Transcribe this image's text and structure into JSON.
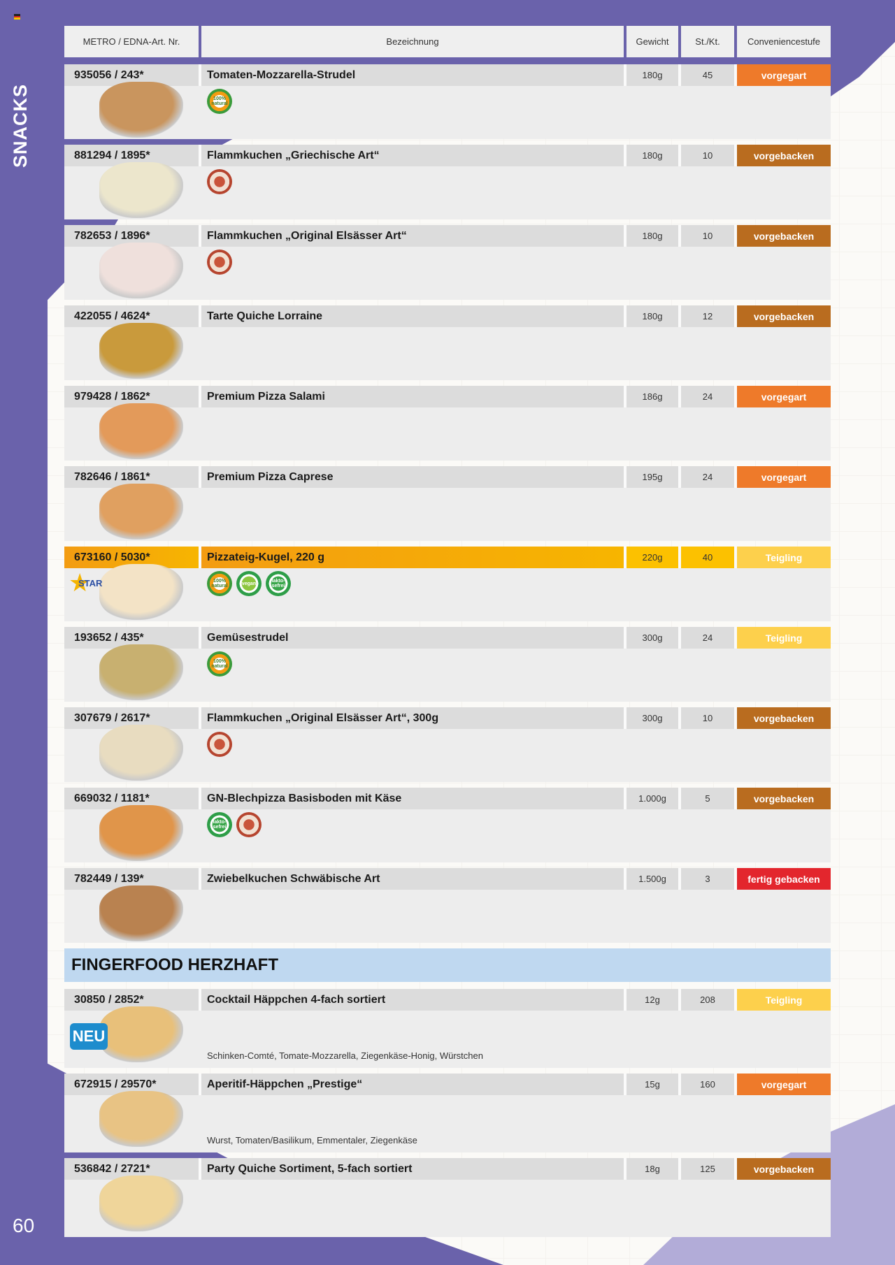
{
  "sidebar": {
    "title": "SNACKS",
    "page_number": "60"
  },
  "colors": {
    "brand_purple": "#6a62ab",
    "vorgegart": "#ee7a2a",
    "vorgebacken": "#b96c1f",
    "teigling": "#fdd04c",
    "fertig_gebacken": "#e3262d",
    "section_bg": "#bfd8f0"
  },
  "table": {
    "headers": {
      "art_nr": "METRO / EDNA-Art. Nr.",
      "name": "Bezeichnung",
      "weight": "Gewicht",
      "qty": "St./Kt.",
      "convenience": "Conveniencestufe"
    }
  },
  "products": [
    {
      "id": "935056 / 243*",
      "name": "Tomaten-Mozzarella-Strudel",
      "weight": "180g",
      "qty": "45",
      "convenience": "vorgegart",
      "badges": [
        "100% natural"
      ],
      "food_color": "#c9955e"
    },
    {
      "id": "881294 / 1895*",
      "name": "Flammkuchen „Griechische Art“",
      "weight": "180g",
      "qty": "10",
      "convenience": "vorgebacken",
      "badges": [
        "oven"
      ],
      "food_color": "#ece6cc"
    },
    {
      "id": "782653 / 1896*",
      "name": "Flammkuchen „Original Elsässer Art“",
      "weight": "180g",
      "qty": "10",
      "convenience": "vorgebacken",
      "badges": [
        "oven"
      ],
      "food_color": "#efe0dc"
    },
    {
      "id": "422055 / 4624*",
      "name": "Tarte Quiche Lorraine",
      "weight": "180g",
      "qty": "12",
      "convenience": "vorgebacken",
      "badges": [],
      "food_color": "#c99a3c"
    },
    {
      "id": "979428 / 1862*",
      "name": "Premium Pizza Salami",
      "weight": "186g",
      "qty": "24",
      "convenience": "vorgegart",
      "badges": [],
      "food_color": "#e39a5a"
    },
    {
      "id": "782646 / 1861*",
      "name": "Premium Pizza Caprese",
      "weight": "195g",
      "qty": "24",
      "convenience": "vorgegart",
      "badges": [],
      "food_color": "#e0a060"
    },
    {
      "id": "673160 / 5030*",
      "name": "Pizzateig-Kugel, 220 g",
      "weight": "220g",
      "qty": "40",
      "convenience": "Teigling",
      "badges": [
        "100% natural",
        "vegan",
        "laktosefrei"
      ],
      "highlight": true,
      "star": "STAR",
      "food_color": "#f3e3c6"
    },
    {
      "id": "193652 / 435*",
      "name": "Gemüsestrudel",
      "weight": "300g",
      "qty": "24",
      "convenience": "Teigling",
      "badges": [
        "100% natural"
      ],
      "food_color": "#c8b070"
    },
    {
      "id": "307679 / 2617*",
      "name": "Flammkuchen „Original Elsässer Art“, 300g",
      "weight": "300g",
      "qty": "10",
      "convenience": "vorgebacken",
      "badges": [
        "oven"
      ],
      "food_color": "#e8dcc0"
    },
    {
      "id": "669032 / 1181*",
      "name": "GN-Blechpizza Basisboden mit Käse",
      "weight": "1.000g",
      "qty": "5",
      "convenience": "vorgebacken",
      "badges": [
        "laktosefrei",
        "oven"
      ],
      "food_color": "#e0954a"
    },
    {
      "id": "782449 / 139*",
      "name": "Zwiebelkuchen Schwäbische Art",
      "weight": "1.500g",
      "qty": "3",
      "convenience": "fertig gebacken",
      "badges": [],
      "food_color": "#b98250"
    }
  ],
  "section": {
    "title": "FINGERFOOD HERZHAFT"
  },
  "fingerfood": [
    {
      "id": "30850 / 2852*",
      "name": "Cocktail Häppchen 4-fach sortiert",
      "weight": "12g",
      "qty": "208",
      "convenience": "Teigling",
      "description": "Schinken-Comté, Tomate-Mozzarella, Ziegenkäse-Honig, Würstchen",
      "new_label": "NEU",
      "food_color": "#e8c07a"
    },
    {
      "id": "672915 / 29570*",
      "name": "Aperitif-Häppchen „Prestige“",
      "weight": "15g",
      "qty": "160",
      "convenience": "vorgegart",
      "description": "Wurst, Tomaten/Basilikum, Emmentaler, Ziegenkäse",
      "food_color": "#e8c384"
    },
    {
      "id": "536842 / 2721*",
      "name": "Party Quiche Sortiment, 5-fach sortiert",
      "weight": "18g",
      "qty": "125",
      "convenience": "vorgebacken",
      "food_color": "#efd59a"
    }
  ]
}
